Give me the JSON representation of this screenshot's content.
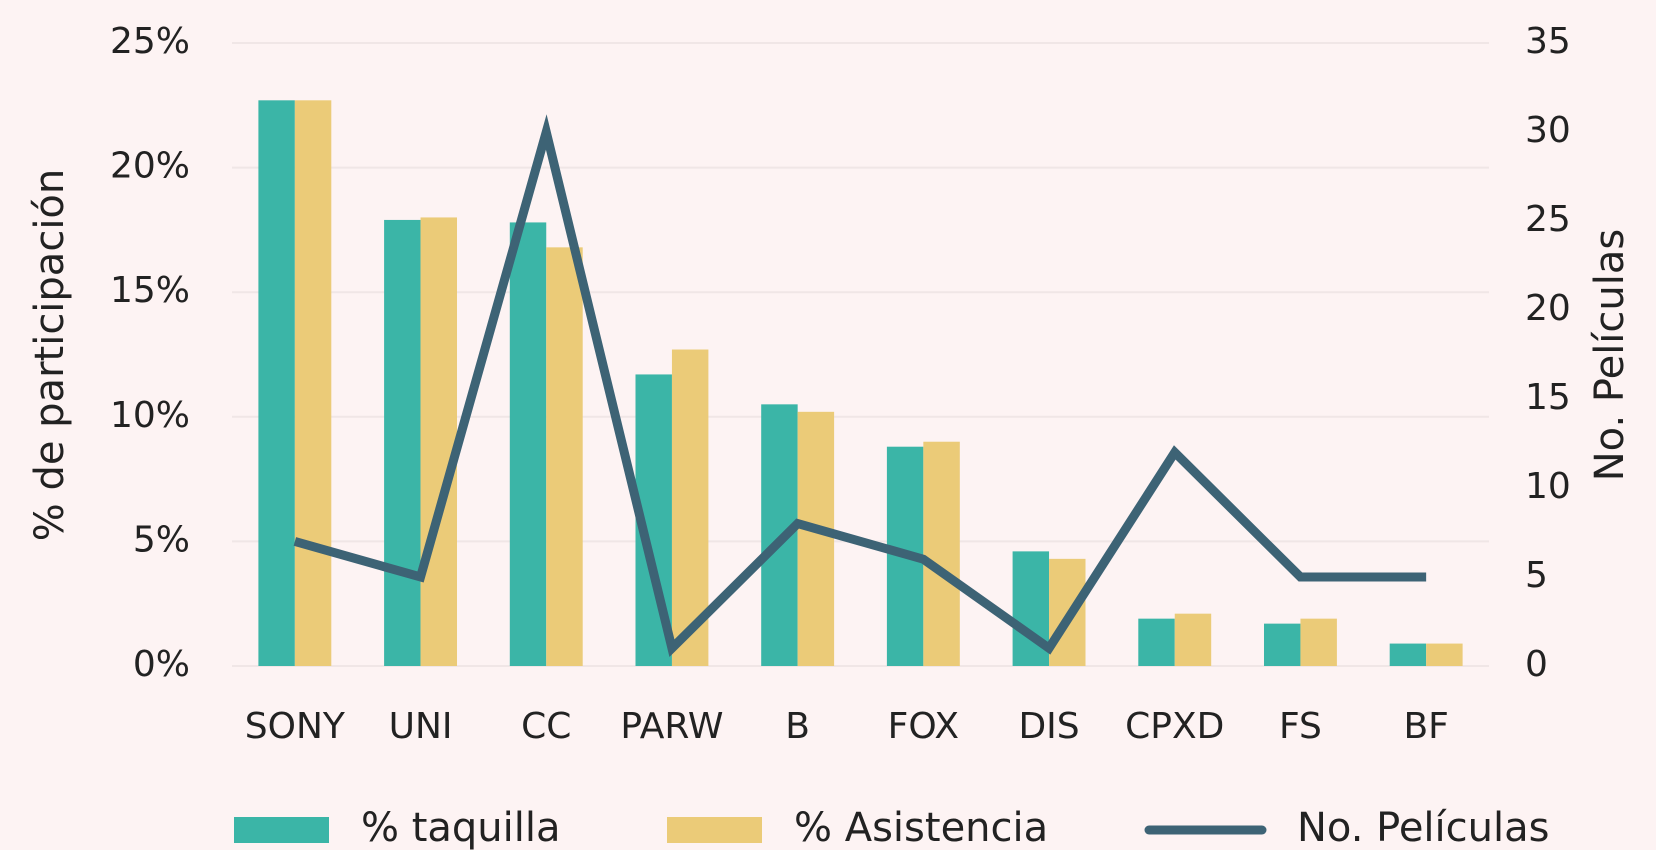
{
  "chart_data": {
    "type": "bar",
    "categories": [
      "SONY",
      "UNI",
      "CC",
      "PARW",
      "B",
      "FOX",
      "DIS",
      "CPXD",
      "FS",
      "BF"
    ],
    "series": [
      {
        "name": "% taquilla",
        "color": "#3bb5a7",
        "values": [
          22.7,
          17.9,
          17.8,
          11.7,
          10.5,
          8.8,
          4.6,
          1.9,
          1.7,
          0.9
        ]
      },
      {
        "name": "% Asistencia",
        "color": "#ebcb78",
        "values": [
          22.7,
          18.0,
          16.8,
          12.7,
          10.2,
          9.0,
          4.3,
          2.1,
          1.9,
          0.9
        ]
      },
      {
        "name": "No. Películas",
        "color": "#3d6375",
        "type": "line",
        "axis": "y2",
        "values": [
          7,
          5,
          30,
          1,
          8,
          6,
          1,
          12,
          5,
          5
        ]
      }
    ],
    "y_label": "% de participación",
    "y2_label": "No. Películas",
    "ylim": [
      0,
      25
    ],
    "yticks": [
      {
        "value": 0,
        "label": "0%"
      },
      {
        "value": 5,
        "label": "5%"
      },
      {
        "value": 10,
        "label": "10%"
      },
      {
        "value": 15,
        "label": "15%"
      },
      {
        "value": 20,
        "label": "20%"
      },
      {
        "value": 25,
        "label": "25%"
      }
    ],
    "y2lim": [
      0,
      35
    ],
    "y2ticks": [
      0,
      5,
      10,
      15,
      20,
      25,
      30,
      35
    ],
    "grid": true,
    "legend": "bottom"
  }
}
